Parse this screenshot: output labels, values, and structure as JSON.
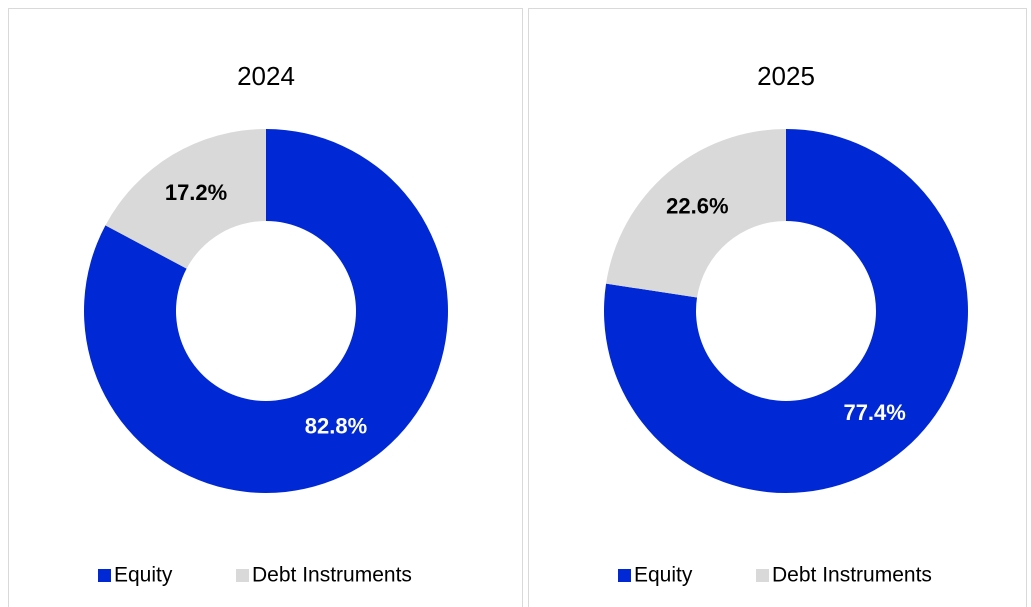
{
  "chart_data": [
    {
      "type": "pie",
      "title": "2024",
      "categories": [
        "Equity",
        "Debt Instruments"
      ],
      "values": [
        82.8,
        17.2
      ],
      "value_labels": [
        "82.8%",
        "17.2%"
      ],
      "colors": [
        "#0028d4",
        "#d9d9d9"
      ],
      "legend": "bottom"
    },
    {
      "type": "pie",
      "title": "2025",
      "categories": [
        "Equity",
        "Debt Instruments"
      ],
      "values": [
        77.4,
        22.6
      ],
      "value_labels": [
        "77.4%",
        "22.6%"
      ],
      "colors": [
        "#0028d4",
        "#d9d9d9"
      ],
      "legend": "bottom"
    }
  ]
}
